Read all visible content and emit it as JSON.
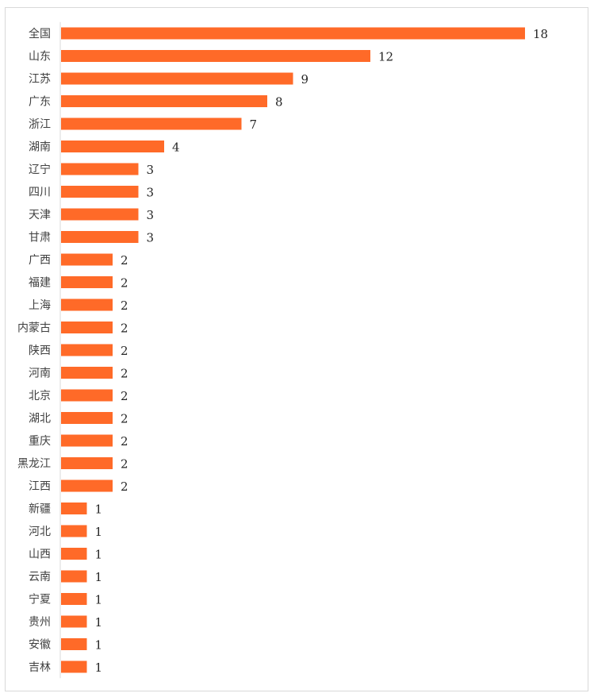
{
  "chart_data": {
    "type": "bar",
    "orientation": "horizontal",
    "categories": [
      "全国",
      "山东",
      "江苏",
      "广东",
      "浙江",
      "湖南",
      "辽宁",
      "四川",
      "天津",
      "甘肃",
      "广西",
      "福建",
      "上海",
      "内蒙古",
      "陕西",
      "河南",
      "北京",
      "湖北",
      "重庆",
      "黑龙江",
      "江西",
      "新疆",
      "河北",
      "山西",
      "云南",
      "宁夏",
      "贵州",
      "安徽",
      "吉林"
    ],
    "values": [
      18,
      12,
      9,
      8,
      7,
      4,
      3,
      3,
      3,
      3,
      2,
      2,
      2,
      2,
      2,
      2,
      2,
      2,
      2,
      2,
      2,
      1,
      1,
      1,
      1,
      1,
      1,
      1,
      1
    ],
    "title": "",
    "xlabel": "",
    "ylabel": "",
    "xlim": [
      0,
      18
    ],
    "grid": false,
    "legend": "none",
    "data_labels": true,
    "bar_color": "#FF6A28",
    "axis_color": "#D9D9D9"
  }
}
